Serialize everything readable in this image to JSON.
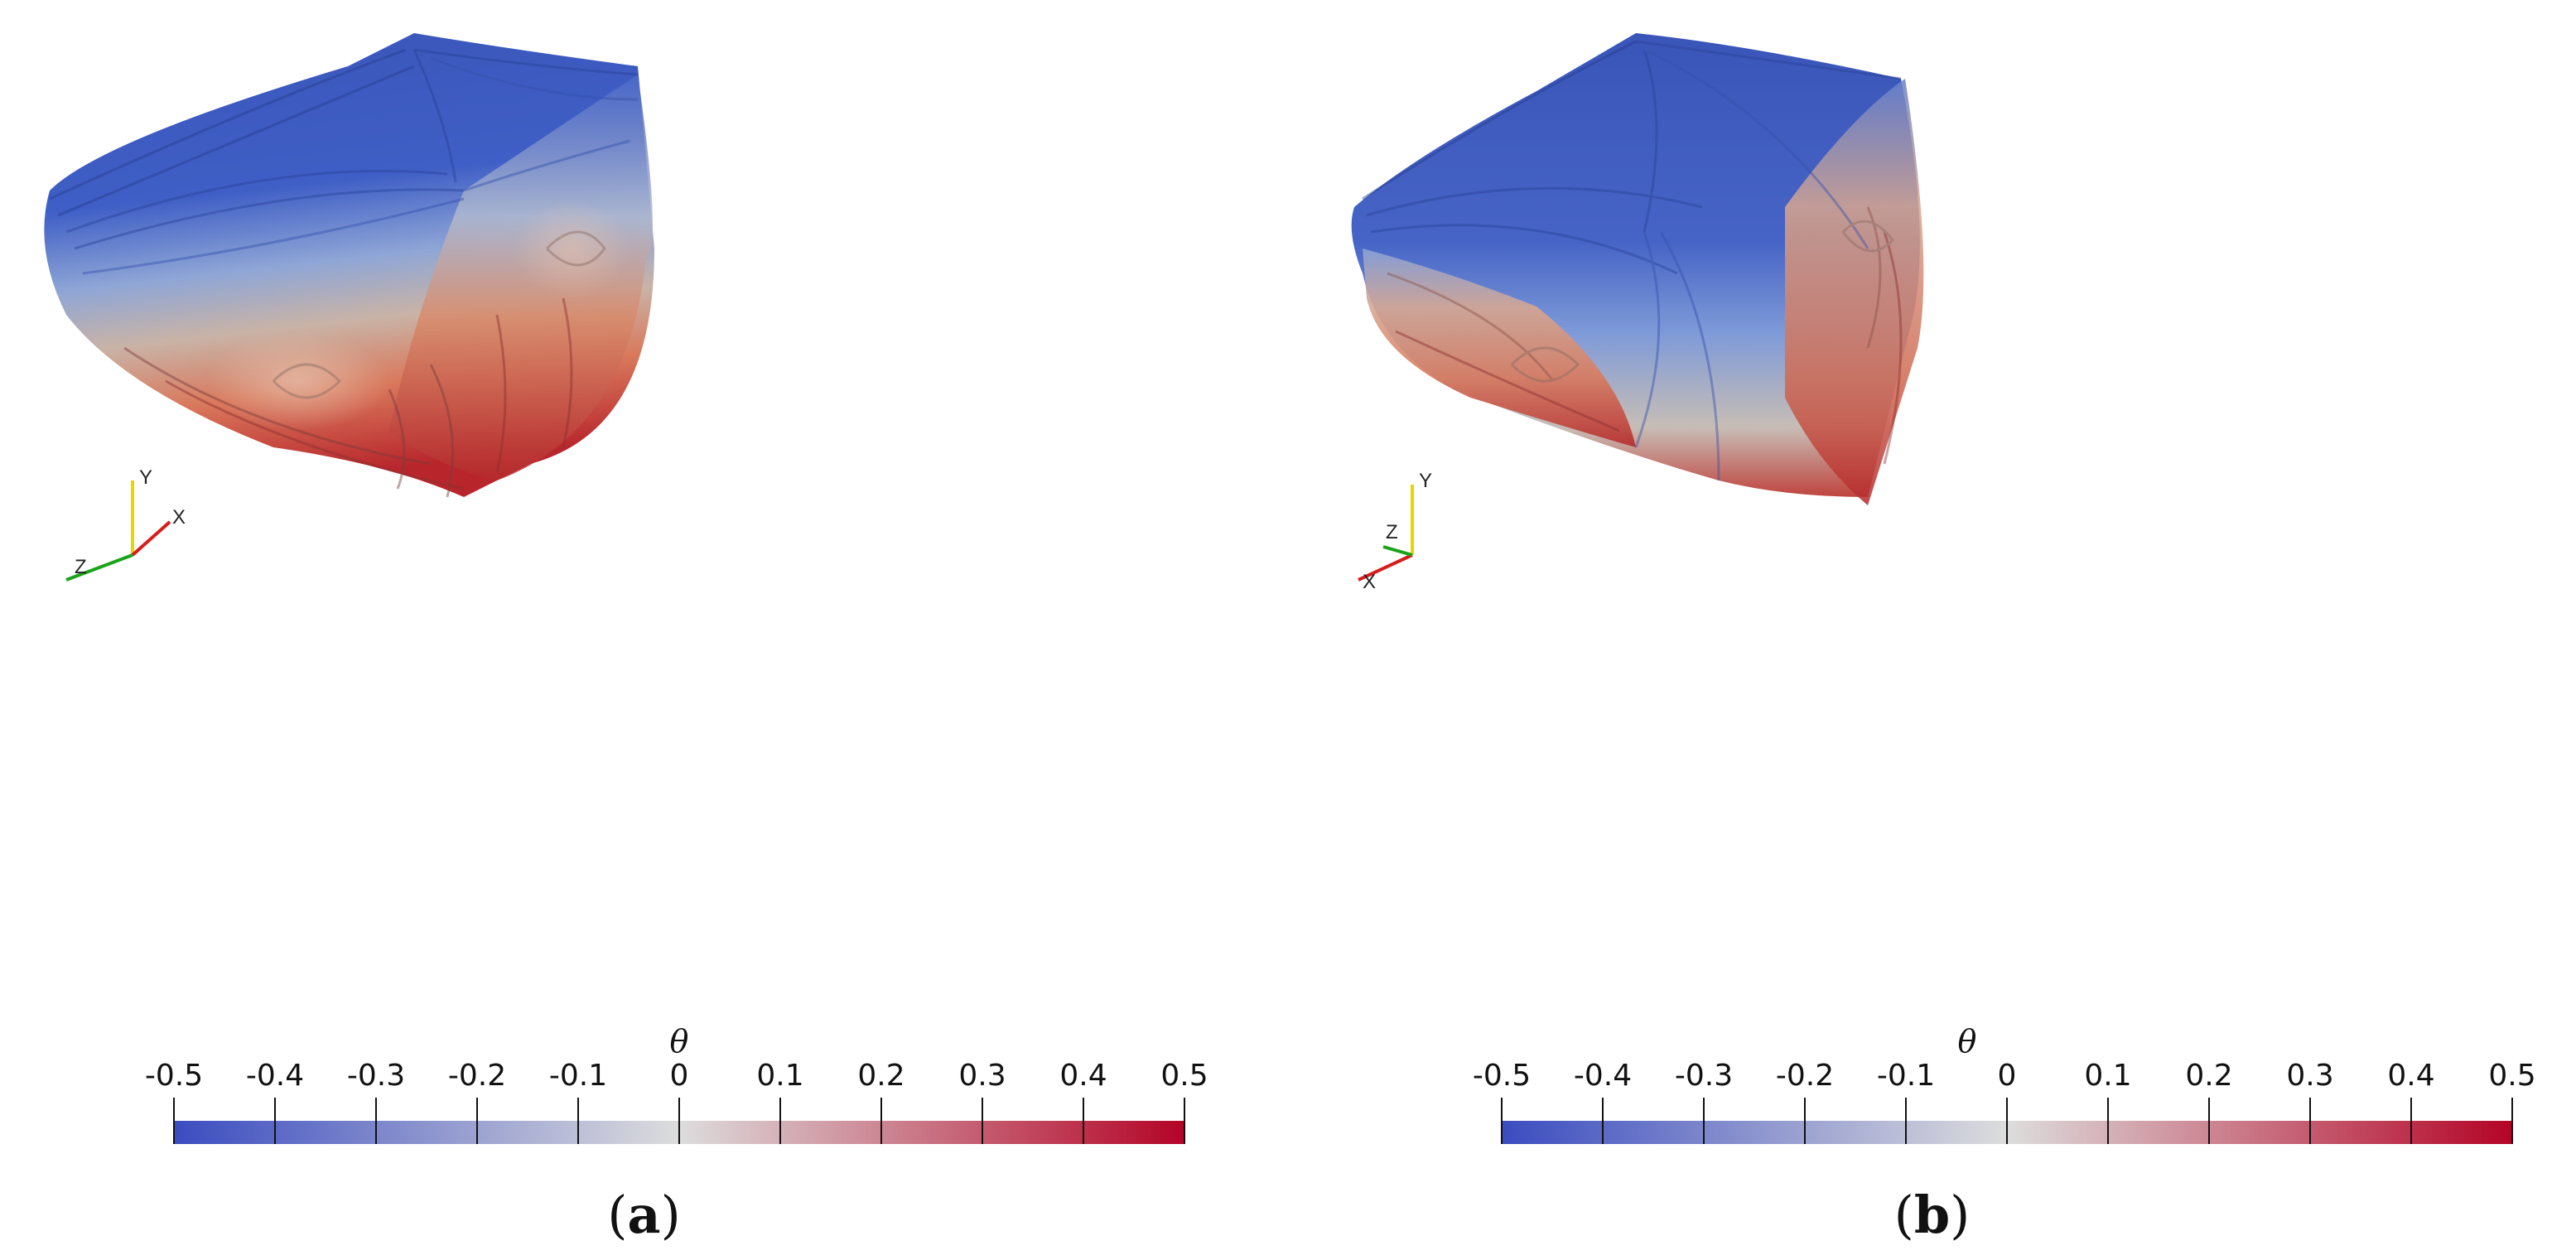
{
  "panels": [
    {
      "id": "a",
      "caption_open": "(",
      "caption_letter": "a",
      "caption_close": ")",
      "axes": {
        "y": "Y",
        "x": "X",
        "z": "Z"
      },
      "colorbar": {
        "label": "θ",
        "ticks": [
          "-0.5",
          "-0.4",
          "-0.3",
          "-0.2",
          "-0.1",
          "0",
          "0.1",
          "0.2",
          "0.3",
          "0.4",
          "0.5"
        ],
        "min": -0.5,
        "max": 0.5,
        "colors": {
          "low": "#3b4cc0",
          "mid": "#dddddd",
          "high": "#b40426"
        }
      }
    },
    {
      "id": "b",
      "caption_open": "(",
      "caption_letter": "b",
      "caption_close": ")",
      "axes": {
        "y": "Y",
        "x": "X",
        "z": "Z"
      },
      "colorbar": {
        "label": "θ",
        "ticks": [
          "-0.5",
          "-0.4",
          "-0.3",
          "-0.2",
          "-0.1",
          "0",
          "0.1",
          "0.2",
          "0.3",
          "0.4",
          "0.5"
        ],
        "min": -0.5,
        "max": 0.5,
        "colors": {
          "low": "#3b4cc0",
          "mid": "#dddddd",
          "high": "#b40426"
        }
      }
    }
  ]
}
